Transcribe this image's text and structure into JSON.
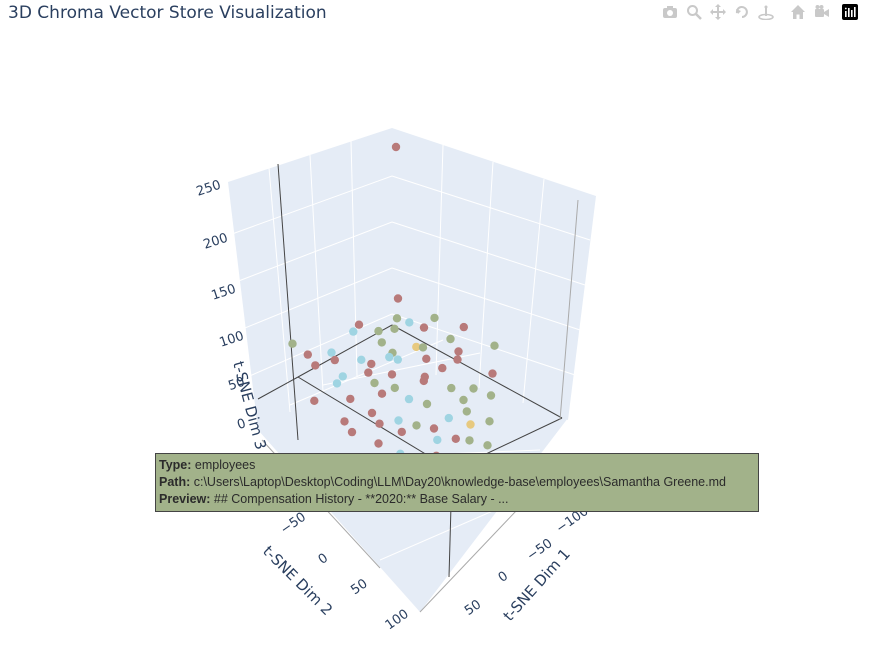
{
  "title": "3D Chroma Vector Store Visualization",
  "modebar": {
    "buttons": [
      "camera-icon",
      "zoom-icon",
      "pan-icon",
      "orbit-icon",
      "turntable-icon",
      "home-icon",
      "video-icon",
      "plotly-logo-icon"
    ]
  },
  "chart_data": {
    "type": "scatter",
    "subtype": "scatter3d",
    "title": "3D Chroma Vector Store Visualization",
    "xlabel": "t-SNE Dim 1",
    "ylabel": "t-SNE Dim 2",
    "zlabel": "t-SNE Dim 3",
    "x_ticks": [
      "−100",
      "−50",
      "0",
      "50"
    ],
    "y_ticks": [
      "−50",
      "0",
      "50",
      "100"
    ],
    "z_ticks": [
      "0",
      "50",
      "100",
      "150",
      "200",
      "250"
    ],
    "xlim": [
      -120,
      80
    ],
    "ylim": [
      -80,
      110
    ],
    "zlim": [
      -20,
      260
    ],
    "colors": {
      "red": "#b87a7a",
      "green": "#a2b28a",
      "blue": "#9fd4e2",
      "yellow": "#e7c97f"
    },
    "points": [
      {
        "x": -40,
        "y": -40,
        "z": 250,
        "c": "red"
      },
      {
        "x": 60,
        "y": -50,
        "z": 60,
        "c": "green"
      },
      {
        "x": 40,
        "y": -20,
        "z": 20,
        "c": "blue"
      },
      {
        "x": 25,
        "y": -30,
        "z": 10,
        "c": "blue"
      },
      {
        "x": 35,
        "y": -10,
        "z": 5,
        "c": "red"
      },
      {
        "x": 20,
        "y": -45,
        "z": 15,
        "c": "red"
      },
      {
        "x": 10,
        "y": -25,
        "z": 25,
        "c": "blue"
      },
      {
        "x": 50,
        "y": 0,
        "z": -5,
        "c": "red"
      },
      {
        "x": 30,
        "y": 10,
        "z": 0,
        "c": "red"
      },
      {
        "x": 15,
        "y": 5,
        "z": 10,
        "c": "red"
      },
      {
        "x": 5,
        "y": -15,
        "z": 0,
        "c": "green"
      },
      {
        "x": -5,
        "y": -30,
        "z": 5,
        "c": "red"
      },
      {
        "x": -15,
        "y": -20,
        "z": 15,
        "c": "blue"
      },
      {
        "x": -25,
        "y": -40,
        "z": 10,
        "c": "green"
      },
      {
        "x": -35,
        "y": -55,
        "z": 5,
        "c": "green"
      },
      {
        "x": -45,
        "y": -10,
        "z": 0,
        "c": "red"
      },
      {
        "x": -55,
        "y": -25,
        "z": -5,
        "c": "green"
      },
      {
        "x": -65,
        "y": -35,
        "z": 5,
        "c": "red"
      },
      {
        "x": -75,
        "y": -15,
        "z": 0,
        "c": "green"
      },
      {
        "x": -85,
        "y": -45,
        "z": -5,
        "c": "green"
      },
      {
        "x": 0,
        "y": 20,
        "z": 5,
        "c": "blue"
      },
      {
        "x": -10,
        "y": 30,
        "z": 0,
        "c": "green"
      },
      {
        "x": -20,
        "y": 15,
        "z": 10,
        "c": "red"
      },
      {
        "x": -30,
        "y": 5,
        "z": 0,
        "c": "red"
      },
      {
        "x": -40,
        "y": 25,
        "z": -5,
        "c": "green"
      },
      {
        "x": -50,
        "y": 40,
        "z": 0,
        "c": "green"
      },
      {
        "x": -60,
        "y": 10,
        "z": 5,
        "c": "red"
      },
      {
        "x": -70,
        "y": 0,
        "z": 0,
        "c": "red"
      },
      {
        "x": 10,
        "y": 40,
        "z": -5,
        "c": "green"
      },
      {
        "x": 20,
        "y": 30,
        "z": 0,
        "c": "blue"
      },
      {
        "x": 5,
        "y": 55,
        "z": 0,
        "c": "red"
      },
      {
        "x": -15,
        "y": 50,
        "z": -5,
        "c": "blue"
      },
      {
        "x": -25,
        "y": 60,
        "z": 5,
        "c": "green"
      },
      {
        "x": -35,
        "y": 45,
        "z": 0,
        "c": "green"
      },
      {
        "x": 30,
        "y": 45,
        "z": 5,
        "c": "red"
      },
      {
        "x": 40,
        "y": 30,
        "z": 10,
        "c": "red"
      },
      {
        "x": 45,
        "y": 60,
        "z": 0,
        "c": "blue"
      },
      {
        "x": 35,
        "y": 70,
        "z": -5,
        "c": "red"
      },
      {
        "x": 25,
        "y": 80,
        "z": 0,
        "c": "red"
      },
      {
        "x": 15,
        "y": 70,
        "z": 5,
        "c": "blue"
      },
      {
        "x": 0,
        "y": 75,
        "z": 0,
        "c": "red"
      },
      {
        "x": -10,
        "y": 80,
        "z": -5,
        "c": "green"
      },
      {
        "x": -20,
        "y": 70,
        "z": 0,
        "c": "yellow"
      },
      {
        "x": -30,
        "y": -5,
        "z": 30,
        "c": "yellow"
      },
      {
        "x": -5,
        "y": -5,
        "z": 40,
        "c": "green"
      },
      {
        "x": 5,
        "y": -40,
        "z": 45,
        "c": "blue"
      },
      {
        "x": -10,
        "y": -50,
        "z": 35,
        "c": "red"
      },
      {
        "x": -25,
        "y": -25,
        "z": 40,
        "c": "green"
      },
      {
        "x": -45,
        "y": -30,
        "z": 30,
        "c": "blue"
      },
      {
        "x": -60,
        "y": -60,
        "z": 25,
        "c": "red"
      },
      {
        "x": -80,
        "y": -5,
        "z": 20,
        "c": "red"
      },
      {
        "x": -90,
        "y": 20,
        "z": 10,
        "c": "green"
      },
      {
        "x": 55,
        "y": -30,
        "z": 0,
        "c": "red"
      },
      {
        "x": 60,
        "y": 20,
        "z": 5,
        "c": "red"
      },
      {
        "x": 50,
        "y": 40,
        "z": 0,
        "c": "red"
      },
      {
        "x": -40,
        "y": 70,
        "z": -10,
        "c": "green"
      },
      {
        "x": -55,
        "y": 55,
        "z": 0,
        "c": "green"
      },
      {
        "x": -70,
        "y": 40,
        "z": 5,
        "c": "red"
      },
      {
        "x": 15,
        "y": 20,
        "z": 30,
        "c": "green"
      },
      {
        "x": 25,
        "y": 0,
        "z": 40,
        "c": "red"
      },
      {
        "x": 35,
        "y": -60,
        "z": 20,
        "c": "red"
      },
      {
        "x": 45,
        "y": -40,
        "z": 30,
        "c": "red"
      },
      {
        "x": 0,
        "y": 0,
        "z": 20,
        "c": "red"
      },
      {
        "x": -15,
        "y": -10,
        "z": 20,
        "c": "blue"
      },
      {
        "x": -35,
        "y": 20,
        "z": 20,
        "c": "red"
      },
      {
        "x": 10,
        "y": -60,
        "z": 5,
        "c": "blue"
      },
      {
        "x": -50,
        "y": -50,
        "z": 15,
        "c": "green"
      },
      {
        "x": -20,
        "y": 90,
        "z": -10,
        "c": "green"
      }
    ]
  },
  "tooltip": {
    "type_label": "Type:",
    "type_value": "employees",
    "path_label": "Path:",
    "path_value": "c:\\Users\\Laptop\\Desktop\\Coding\\LLM\\Day20\\knowledge-base\\employees\\Samantha Greene.md",
    "preview_label": "Preview:",
    "preview_value": "## Compensation History - **2020:** Base Salary - ..."
  }
}
